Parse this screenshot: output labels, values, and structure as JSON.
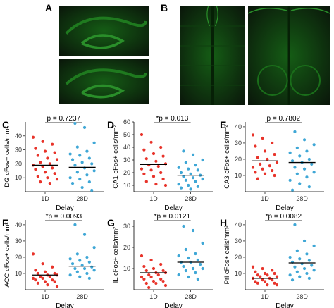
{
  "figure": {
    "top_panels": [
      {
        "letter": "A"
      },
      {
        "letter": "B"
      }
    ],
    "colors": {
      "d1": "#e8332a",
      "d28": "#3fa7d6",
      "bar": "#000000",
      "micrograph_bg": "#0a160a",
      "micrograph_fg": "#1f7a1f"
    }
  },
  "chart_data": [
    {
      "panel": "C",
      "type": "scatter",
      "ylabel": "DG cFos+ cells/mm²",
      "xlabel": "Delay",
      "categories": [
        "1D",
        "28D"
      ],
      "ylim": [
        0,
        50
      ],
      "yticks": [
        10,
        20,
        30,
        40
      ],
      "annotation": "p = 0.7237",
      "means": [
        19,
        17.5
      ],
      "series": [
        {
          "values": [
            39,
            36,
            34,
            31,
            29,
            28,
            26,
            24,
            23,
            21,
            20,
            19,
            18,
            17,
            16,
            14,
            13,
            11,
            10,
            9,
            7,
            6
          ]
        },
        {
          "values": [
            49,
            46,
            35,
            32,
            29,
            27,
            26,
            24,
            23,
            21,
            20,
            19,
            17,
            15,
            14,
            12,
            10,
            9,
            7,
            6,
            3,
            1
          ]
        }
      ]
    },
    {
      "panel": "D",
      "type": "scatter",
      "ylabel": "CA1 cFos+ cells/mm²",
      "xlabel": "Delay",
      "categories": [
        "1D",
        "28D"
      ],
      "ylim": [
        5,
        60
      ],
      "yticks": [
        10,
        20,
        30,
        40,
        50,
        60
      ],
      "annotation": "*p = 0.013",
      "means": [
        26.5,
        18
      ],
      "series": [
        {
          "values": [
            50,
            44,
            40,
            38,
            35,
            33,
            31,
            29,
            27,
            26,
            25,
            23,
            22,
            20,
            19,
            17,
            15,
            13,
            11,
            10
          ]
        },
        {
          "values": [
            37,
            34,
            30,
            28,
            26,
            24,
            23,
            22,
            20,
            19,
            18,
            17,
            16,
            15,
            14,
            13,
            11,
            10,
            9,
            8,
            7
          ]
        }
      ]
    },
    {
      "panel": "E",
      "type": "scatter",
      "ylabel": "CA3 cFos+ cells/mm²",
      "xlabel": "Delay",
      "categories": [
        "1D",
        "28D"
      ],
      "ylim": [
        0,
        43
      ],
      "yticks": [
        10,
        20,
        30,
        40
      ],
      "annotation": "p = 0.7802",
      "means": [
        19,
        18
      ],
      "series": [
        {
          "values": [
            35,
            33,
            30,
            28,
            25,
            23,
            21,
            20,
            18,
            17,
            16,
            15,
            14,
            13,
            12,
            11,
            10,
            8
          ]
        },
        {
          "values": [
            37,
            32,
            29,
            27,
            25,
            24,
            22,
            20,
            19,
            18,
            17,
            15,
            14,
            12,
            11,
            9,
            7,
            5,
            3,
            1
          ]
        }
      ]
    },
    {
      "panel": "F",
      "type": "scatter",
      "ylabel": "ACC cFos+ cells/mm²",
      "xlabel": "Delay",
      "categories": [
        "1D",
        "28D"
      ],
      "ylim": [
        0,
        43
      ],
      "yticks": [
        10,
        20,
        30,
        40
      ],
      "annotation": "*p = 0.0093",
      "means": [
        9,
        14.5
      ],
      "series": [
        {
          "values": [
            22,
            16,
            14,
            12,
            11,
            10,
            10,
            9,
            9,
            8,
            8,
            7,
            7,
            6,
            6,
            5,
            5,
            4,
            3,
            2
          ]
        },
        {
          "values": [
            40,
            34,
            26,
            22,
            20,
            19,
            18,
            17,
            16,
            15,
            14,
            13,
            13,
            12,
            11,
            10,
            9,
            8,
            7
          ]
        }
      ]
    },
    {
      "panel": "G",
      "type": "scatter",
      "ylabel": "IL cFos+ cells/mm²",
      "xlabel": "Delay",
      "categories": [
        "1D",
        "28D"
      ],
      "ylim": [
        0,
        33
      ],
      "yticks": [
        10,
        20,
        30
      ],
      "annotation": "*p = 0.0121",
      "means": [
        8,
        13
      ],
      "series": [
        {
          "values": [
            16,
            14,
            12,
            11,
            10,
            9,
            9,
            8,
            8,
            7,
            7,
            6,
            6,
            5,
            5,
            4,
            4,
            3,
            3,
            2,
            1
          ]
        },
        {
          "values": [
            30,
            28,
            22,
            19,
            17,
            16,
            15,
            14,
            13,
            13,
            12,
            11,
            10,
            10,
            9,
            8,
            7,
            6,
            5
          ]
        }
      ]
    },
    {
      "panel": "H",
      "type": "scatter",
      "ylabel": "Prl cFos+ cells/mm²",
      "xlabel": "Delay",
      "categories": [
        "1D",
        "28D"
      ],
      "ylim": [
        0,
        43
      ],
      "yticks": [
        10,
        20,
        30,
        40
      ],
      "annotation": "*p = 0.0082",
      "means": [
        7,
        16.5
      ],
      "series": [
        {
          "values": [
            14,
            13,
            12,
            11,
            10,
            10,
            9,
            9,
            8,
            8,
            7,
            7,
            6,
            6,
            5,
            5,
            4,
            4,
            3,
            3
          ]
        },
        {
          "values": [
            40,
            30,
            27,
            24,
            22,
            20,
            19,
            18,
            17,
            16,
            15,
            14,
            13,
            12,
            11,
            10,
            9,
            8,
            7,
            6
          ]
        }
      ]
    }
  ]
}
